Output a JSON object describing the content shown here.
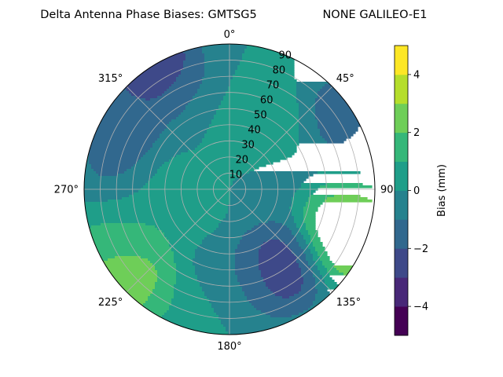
{
  "title_left": "Delta Antenna Phase Biases: GMTSG5",
  "title_right": "NONE GALILEO-E1",
  "chart_data": {
    "type": "heatmap",
    "projection": "polar",
    "theta_zero": "top",
    "theta_direction": "clockwise",
    "azimuth_ticks": [
      "0°",
      "45°",
      "90",
      "135°",
      "180°",
      "225°",
      "270°",
      "315°"
    ],
    "zenith_ticks": [
      "10",
      "20",
      "30",
      "40",
      "50",
      "60",
      "70",
      "80",
      "90"
    ],
    "zenith_range": [
      0,
      90
    ],
    "grid": true,
    "colorbar": {
      "label": "Bias (mm)",
      "range": [
        -5,
        5
      ],
      "ticks": [
        "4",
        "2",
        "0",
        "−2",
        "−4"
      ],
      "levels": [
        -5,
        -4,
        -3,
        -2,
        -1,
        0,
        1,
        2,
        3,
        4,
        5
      ],
      "colors": [
        "#440154",
        "#482878",
        "#3e4989",
        "#31688e",
        "#26828e",
        "#1f9e89",
        "#35b779",
        "#6ece58",
        "#b5de2b",
        "#fde725"
      ]
    },
    "features": [
      {
        "azimuth": 262,
        "zenith": 40,
        "value": 1.2
      },
      {
        "azimuth": 15,
        "zenith": 40,
        "value": 1.3
      },
      {
        "azimuth": 32,
        "zenith": 48,
        "value": 1.2
      },
      {
        "azimuth": 113,
        "zenith": 79,
        "value": 3.8
      },
      {
        "azimuth": 103,
        "zenith": 77,
        "value": 2.8
      },
      {
        "azimuth": 228,
        "zenith": 84,
        "value": 3.4
      },
      {
        "azimuth": 238,
        "zenith": 83,
        "value": 2.2
      },
      {
        "azimuth": 147,
        "zenith": 58,
        "value": -3.3
      },
      {
        "azimuth": 328,
        "zenith": 88,
        "value": -3.8
      },
      {
        "azimuth": 280,
        "zenith": 68,
        "value": -1.5
      },
      {
        "azimuth": 300,
        "zenith": 75,
        "value": -1.7
      },
      {
        "azimuth": 200,
        "zenith": 82,
        "value": 1.0
      },
      {
        "azimuth": 55,
        "zenith": 78,
        "value": -1.8
      },
      {
        "azimuth": 72,
        "zenith": 87,
        "value": -0.8
      },
      {
        "azimuth": 180,
        "zenith": 60,
        "value": -0.9
      },
      {
        "azimuth": 250,
        "zenith": 70,
        "value": 1.0
      },
      {
        "azimuth": 338,
        "zenith": 60,
        "value": -1.0
      },
      {
        "azimuth": 60,
        "zenith": 30,
        "value": -0.5
      }
    ]
  }
}
